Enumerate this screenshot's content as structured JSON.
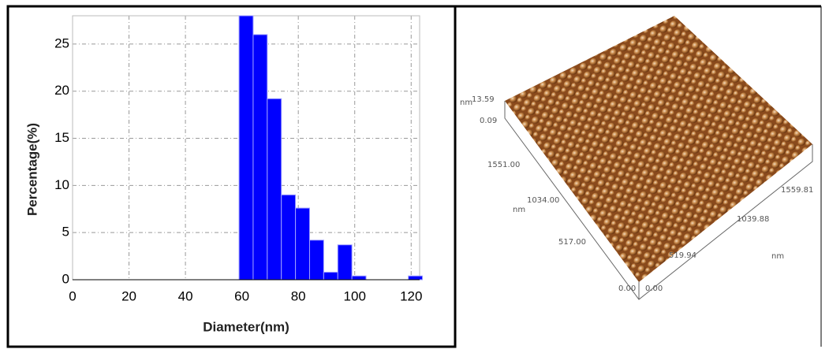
{
  "chart_data": {
    "type": "histogram",
    "x_label": "Diameter(nm)",
    "y_label": "Percentage(%)",
    "bins": [
      59,
      64,
      69,
      74,
      79,
      84,
      89,
      94,
      99,
      104,
      109,
      114,
      119,
      124
    ],
    "values": [
      28,
      26,
      19.2,
      9,
      7.6,
      4.2,
      0.8,
      3.7,
      0.4,
      0,
      0,
      0,
      0.4
    ],
    "color": "#0000ff",
    "xlim": [
      0,
      123
    ],
    "ylim": [
      0,
      28
    ],
    "xticks": [
      0,
      20,
      40,
      60,
      80,
      100,
      120
    ],
    "yticks": [
      0,
      5,
      10,
      15,
      20,
      25
    ],
    "grid": true
  },
  "afm_image": {
    "z_unit": "nm",
    "z_max": "13.59",
    "z_min": "0.09",
    "y_labels": [
      "1551.00",
      "1034.00",
      "517.00",
      "0.00"
    ],
    "y_unit": "nm",
    "x_labels": [
      "0.00",
      "519.94",
      "1039.88",
      "1559.81"
    ],
    "x_unit": "nm"
  }
}
